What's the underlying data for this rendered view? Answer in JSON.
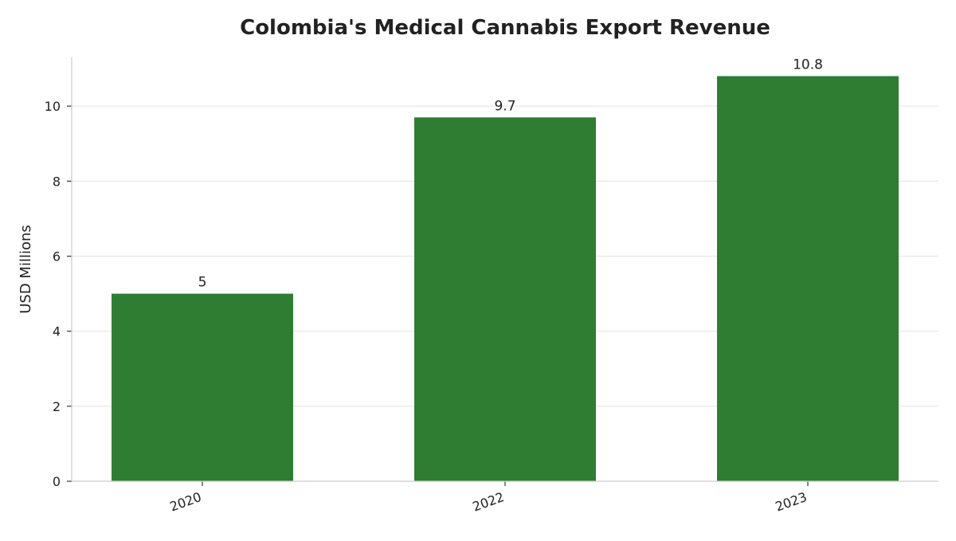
{
  "chart_data": {
    "type": "bar",
    "title": "Colombia's Medical Cannabis Export Revenue",
    "xlabel": "",
    "ylabel": "USD Millions",
    "categories": [
      "2020",
      "2022",
      "2023"
    ],
    "values": [
      5,
      9.7,
      10.8
    ],
    "data_labels": [
      "5",
      "9.7",
      "10.8"
    ],
    "ylim": [
      0,
      11.3
    ],
    "yticks": [
      0,
      2,
      4,
      6,
      8,
      10
    ],
    "ytick_labels": [
      "0",
      "2",
      "4",
      "6",
      "8",
      "10"
    ],
    "grid": "horizontal",
    "x_tick_rotation": "slanted",
    "bar_color": "#2e7d32",
    "grid_color": "#e6e6e6"
  }
}
